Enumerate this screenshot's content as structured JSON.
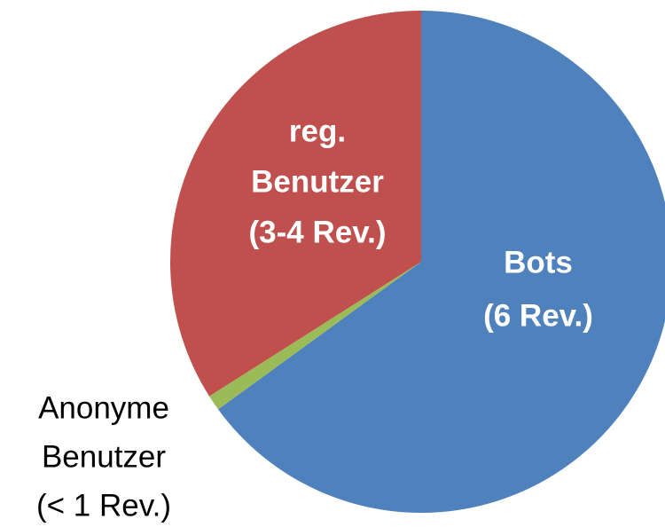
{
  "chart_data": {
    "type": "pie",
    "categories": [
      [
        "Bots",
        "(6 Rev.)"
      ],
      [
        "Anonyme",
        "Benutzer",
        "(< 1 Rev.)"
      ],
      [
        "reg.",
        "Benutzer",
        "(3-4 Rev.)"
      ]
    ],
    "values": [
      65,
      1,
      34
    ],
    "colors": [
      "#4f81bd",
      "#9bbb59",
      "#c0504d"
    ]
  }
}
